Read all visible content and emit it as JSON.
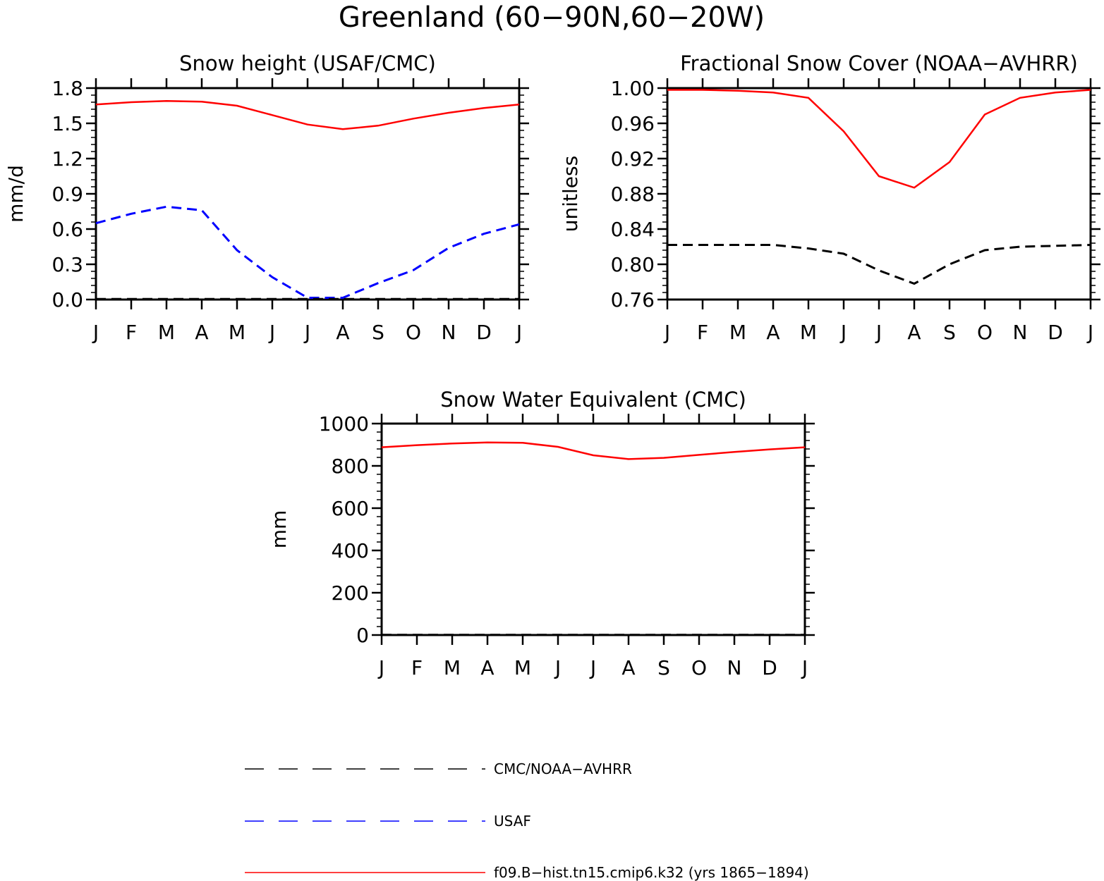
{
  "figure": {
    "title": "Greenland (60−90N,60−20W)"
  },
  "colors": {
    "model": "#ff0000",
    "usaf": "#0000ff",
    "obs": "#000000",
    "axis": "#000000"
  },
  "legend": [
    {
      "key": "cmc",
      "label": "CMC/NOAA−AVHRR",
      "color": "#000000",
      "style": "dashed"
    },
    {
      "key": "usaf",
      "label": "USAF",
      "color": "#0000ff",
      "style": "dashed"
    },
    {
      "key": "model",
      "label": "f09.B−hist.tn15.cmip6.k32 (yrs 1865−1894)",
      "color": "#ff0000",
      "style": "solid"
    }
  ],
  "chart_data": [
    {
      "id": "snow-height",
      "type": "line",
      "title": "Snow height (USAF/CMC)",
      "ylabel": "mm/d",
      "xlabel": "",
      "categories": [
        "J",
        "F",
        "M",
        "A",
        "M",
        "J",
        "J",
        "A",
        "S",
        "O",
        "N",
        "D",
        "J"
      ],
      "ylim": [
        0.0,
        1.8
      ],
      "yticks": [
        "0.0",
        "0.3",
        "0.6",
        "0.9",
        "1.2",
        "1.5",
        "1.8"
      ],
      "grid": false,
      "series": [
        {
          "key": "model",
          "color": "#ff0000",
          "style": "solid",
          "values": [
            1.66,
            1.68,
            1.69,
            1.685,
            1.65,
            1.57,
            1.49,
            1.45,
            1.48,
            1.54,
            1.59,
            1.63,
            1.66
          ]
        },
        {
          "key": "usaf",
          "color": "#0000ff",
          "style": "dashed",
          "values": [
            0.65,
            0.73,
            0.79,
            0.76,
            0.42,
            0.19,
            0.015,
            0.015,
            0.14,
            0.25,
            0.44,
            0.56,
            0.64
          ]
        },
        {
          "key": "cmc",
          "color": "#000000",
          "style": "dashed",
          "values": [
            0.005,
            0.005,
            0.005,
            0.005,
            0.005,
            0.005,
            0.005,
            0.005,
            0.005,
            0.005,
            0.005,
            0.005,
            0.005
          ]
        }
      ]
    },
    {
      "id": "snow-cover",
      "type": "line",
      "title": "Fractional Snow Cover (NOAA−AVHRR)",
      "ylabel": "unitless",
      "xlabel": "",
      "categories": [
        "J",
        "F",
        "M",
        "A",
        "M",
        "J",
        "J",
        "A",
        "S",
        "O",
        "N",
        "D",
        "J"
      ],
      "ylim": [
        0.76,
        1.0
      ],
      "yticks": [
        "0.76",
        "0.80",
        "0.84",
        "0.88",
        "0.92",
        "0.96",
        "1.00"
      ],
      "grid": false,
      "series": [
        {
          "key": "model",
          "color": "#ff0000",
          "style": "solid",
          "values": [
            0.998,
            0.998,
            0.997,
            0.995,
            0.989,
            0.951,
            0.9,
            0.887,
            0.916,
            0.97,
            0.989,
            0.995,
            0.998
          ]
        },
        {
          "key": "cmc",
          "color": "#000000",
          "style": "dashed",
          "values": [
            0.822,
            0.822,
            0.822,
            0.822,
            0.818,
            0.812,
            0.793,
            0.778,
            0.8,
            0.816,
            0.82,
            0.821,
            0.822
          ]
        }
      ]
    },
    {
      "id": "swe",
      "type": "line",
      "title": "Snow Water Equivalent (CMC)",
      "ylabel": "mm",
      "xlabel": "",
      "categories": [
        "J",
        "F",
        "M",
        "A",
        "M",
        "J",
        "J",
        "A",
        "S",
        "O",
        "N",
        "D",
        "J"
      ],
      "ylim": [
        0,
        1000
      ],
      "yticks": [
        "0",
        "200",
        "400",
        "600",
        "800",
        "1000"
      ],
      "grid": false,
      "series": [
        {
          "key": "model",
          "color": "#ff0000",
          "style": "solid",
          "values": [
            888,
            898,
            906,
            911,
            909,
            890,
            850,
            832,
            838,
            852,
            866,
            878,
            888
          ]
        },
        {
          "key": "cmc",
          "color": "#000000",
          "style": "dashed",
          "values": [
            1,
            1,
            1,
            1,
            1,
            1,
            1,
            1,
            1,
            1,
            1,
            1,
            1
          ]
        }
      ]
    }
  ]
}
